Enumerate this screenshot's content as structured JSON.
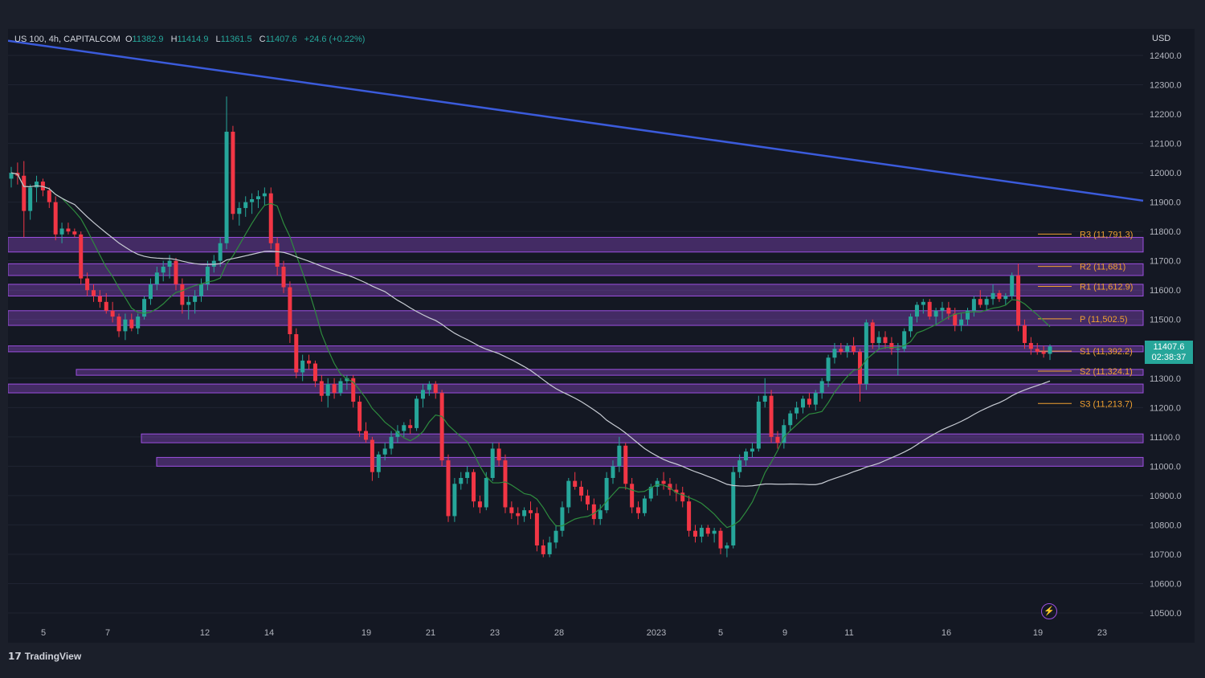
{
  "header": {
    "symbol": "US 100, 4h, CAPITALCOM",
    "open_label": "O",
    "open": "11382.9",
    "high_label": "H",
    "high": "11414.9",
    "low_label": "L",
    "low": "11361.5",
    "close_label": "C",
    "close": "11407.6",
    "change": "+24.6 (+0.22%)"
  },
  "currency": "USD",
  "last_price_tag": {
    "price": "11407.6",
    "countdown": "02:38:37"
  },
  "brand": "TradingView",
  "colors": {
    "up": "#26a69a",
    "down": "#f23645",
    "trendline": "#3b5bdb",
    "zone": "#9c4fe0",
    "pivot": "#f0a030",
    "ma_fast": "#2e8b3e",
    "ma_slow": "#c8ccd4"
  },
  "chart_data": {
    "type": "candlestick",
    "ylim": [
      10450,
      12500
    ],
    "y_ticks": [
      12400,
      12300,
      12200,
      12100,
      12000,
      11900,
      11800,
      11700,
      11600,
      11500,
      11400,
      11300,
      11200,
      11100,
      11000,
      10900,
      10800,
      10700,
      10600,
      10500
    ],
    "x_ticks": [
      "5",
      "7",
      "12",
      "14",
      "19",
      "21",
      "23",
      "28",
      "2023",
      "5",
      "9",
      "11",
      "16",
      "19",
      "23"
    ],
    "pivots": [
      {
        "label": "R3 (11,791.3)",
        "value": 11791.3
      },
      {
        "label": "R2 (11,681)",
        "value": 11681
      },
      {
        "label": "R1 (11,612.9)",
        "value": 11612.9
      },
      {
        "label": "P (11,502.5)",
        "value": 11502.5
      },
      {
        "label": "S1 (11,392.2)",
        "value": 11392.2
      },
      {
        "label": "S2 (11,324.1)",
        "value": 11324.1
      },
      {
        "label": "S3 (11,213.7)",
        "value": 11213.7
      }
    ],
    "zones": [
      [
        11730,
        11780
      ],
      [
        11650,
        11690
      ],
      [
        11580,
        11620
      ],
      [
        11480,
        11530
      ],
      [
        11390,
        11410
      ],
      [
        11310,
        11330
      ],
      [
        11250,
        11280
      ],
      [
        11080,
        11110
      ],
      [
        11000,
        11030
      ]
    ],
    "trendline": [
      12450,
      11905
    ],
    "ohlc": [
      [
        11980,
        12020,
        11950,
        12000
      ],
      [
        12000,
        12035,
        11960,
        11990
      ],
      [
        11990,
        12040,
        11780,
        11870
      ],
      [
        11870,
        11960,
        11840,
        11950
      ],
      [
        11950,
        11990,
        11900,
        11970
      ],
      [
        11970,
        11980,
        11920,
        11940
      ],
      [
        11940,
        11950,
        11880,
        11900
      ],
      [
        11900,
        11920,
        11770,
        11790
      ],
      [
        11790,
        11830,
        11760,
        11810
      ],
      [
        11810,
        11830,
        11790,
        11800
      ],
      [
        11800,
        11810,
        11780,
        11790
      ],
      [
        11790,
        11800,
        11620,
        11640
      ],
      [
        11640,
        11660,
        11580,
        11600
      ],
      [
        11600,
        11620,
        11560,
        11580
      ],
      [
        11580,
        11600,
        11540,
        11560
      ],
      [
        11560,
        11590,
        11520,
        11530
      ],
      [
        11530,
        11560,
        11490,
        11510
      ],
      [
        11510,
        11520,
        11440,
        11460
      ],
      [
        11460,
        11520,
        11430,
        11500
      ],
      [
        11500,
        11520,
        11460,
        11470
      ],
      [
        11470,
        11520,
        11450,
        11510
      ],
      [
        11510,
        11580,
        11500,
        11570
      ],
      [
        11570,
        11640,
        11550,
        11620
      ],
      [
        11620,
        11680,
        11600,
        11660
      ],
      [
        11660,
        11700,
        11630,
        11680
      ],
      [
        11680,
        11720,
        11640,
        11700
      ],
      [
        11700,
        11710,
        11600,
        11620
      ],
      [
        11620,
        11640,
        11520,
        11550
      ],
      [
        11550,
        11580,
        11500,
        11560
      ],
      [
        11560,
        11600,
        11520,
        11580
      ],
      [
        11580,
        11640,
        11560,
        11620
      ],
      [
        11620,
        11700,
        11600,
        11680
      ],
      [
        11680,
        11720,
        11660,
        11700
      ],
      [
        11700,
        11780,
        11680,
        11760
      ],
      [
        11760,
        12260,
        11740,
        12140
      ],
      [
        12140,
        12160,
        11840,
        11860
      ],
      [
        11860,
        11900,
        11820,
        11880
      ],
      [
        11880,
        11920,
        11850,
        11900
      ],
      [
        11900,
        11930,
        11860,
        11910
      ],
      [
        11910,
        11940,
        11880,
        11920
      ],
      [
        11920,
        11950,
        11890,
        11930
      ],
      [
        11930,
        11950,
        11740,
        11760
      ],
      [
        11760,
        11780,
        11650,
        11680
      ],
      [
        11680,
        11700,
        11590,
        11610
      ],
      [
        11610,
        11630,
        11420,
        11450
      ],
      [
        11450,
        11470,
        11300,
        11320
      ],
      [
        11320,
        11380,
        11290,
        11360
      ],
      [
        11360,
        11380,
        11330,
        11350
      ],
      [
        11350,
        11360,
        11270,
        11290
      ],
      [
        11290,
        11310,
        11220,
        11240
      ],
      [
        11240,
        11300,
        11200,
        11280
      ],
      [
        11280,
        11300,
        11230,
        11250
      ],
      [
        11250,
        11300,
        11240,
        11290
      ],
      [
        11290,
        11310,
        11260,
        11300
      ],
      [
        11300,
        11310,
        11200,
        11220
      ],
      [
        11220,
        11240,
        11100,
        11120
      ],
      [
        11120,
        11150,
        11080,
        11090
      ],
      [
        11090,
        11100,
        10950,
        10980
      ],
      [
        10980,
        11050,
        10960,
        11040
      ],
      [
        11040,
        11080,
        11020,
        11060
      ],
      [
        11060,
        11120,
        11040,
        11100
      ],
      [
        11100,
        11140,
        11080,
        11120
      ],
      [
        11120,
        11150,
        11100,
        11140
      ],
      [
        11140,
        11160,
        11110,
        11130
      ],
      [
        11130,
        11240,
        11120,
        11230
      ],
      [
        11230,
        11280,
        11200,
        11260
      ],
      [
        11260,
        11290,
        11240,
        11280
      ],
      [
        11280,
        11290,
        11230,
        11250
      ],
      [
        11250,
        11260,
        11000,
        11020
      ],
      [
        11020,
        11040,
        10810,
        10830
      ],
      [
        10830,
        10960,
        10810,
        10940
      ],
      [
        10940,
        10980,
        10920,
        10960
      ],
      [
        10960,
        11000,
        10940,
        10980
      ],
      [
        10980,
        10990,
        10860,
        10880
      ],
      [
        10880,
        10900,
        10840,
        10860
      ],
      [
        10860,
        10980,
        10850,
        10960
      ],
      [
        10960,
        11080,
        10950,
        11060
      ],
      [
        11060,
        11080,
        11000,
        11020
      ],
      [
        11020,
        11040,
        10840,
        10860
      ],
      [
        10860,
        10880,
        10820,
        10840
      ],
      [
        10840,
        10860,
        10800,
        10830
      ],
      [
        10830,
        10860,
        10810,
        10850
      ],
      [
        10850,
        10880,
        10820,
        10840
      ],
      [
        10840,
        10860,
        10710,
        10730
      ],
      [
        10730,
        10750,
        10690,
        10700
      ],
      [
        10700,
        10760,
        10690,
        10740
      ],
      [
        10740,
        10800,
        10720,
        10780
      ],
      [
        10780,
        10880,
        10760,
        10860
      ],
      [
        10860,
        10960,
        10840,
        10950
      ],
      [
        10950,
        10980,
        10920,
        10930
      ],
      [
        10930,
        10950,
        10880,
        10900
      ],
      [
        10900,
        10920,
        10850,
        10870
      ],
      [
        10870,
        10890,
        10800,
        10820
      ],
      [
        10820,
        10870,
        10800,
        10850
      ],
      [
        10850,
        10980,
        10840,
        10960
      ],
      [
        10960,
        11020,
        10940,
        11000
      ],
      [
        11000,
        11100,
        10980,
        11070
      ],
      [
        11070,
        11080,
        10920,
        10940
      ],
      [
        10940,
        10960,
        10840,
        10860
      ],
      [
        10860,
        10880,
        10820,
        10840
      ],
      [
        10840,
        10900,
        10830,
        10890
      ],
      [
        10890,
        10940,
        10880,
        10930
      ],
      [
        10930,
        10960,
        10900,
        10950
      ],
      [
        10950,
        10980,
        10920,
        10940
      ],
      [
        10940,
        10960,
        10900,
        10920
      ],
      [
        10920,
        10940,
        10880,
        10910
      ],
      [
        10910,
        10930,
        10860,
        10880
      ],
      [
        10880,
        10900,
        10760,
        10780
      ],
      [
        10780,
        10800,
        10740,
        10760
      ],
      [
        10760,
        10800,
        10740,
        10790
      ],
      [
        10790,
        10800,
        10760,
        10770
      ],
      [
        10770,
        10790,
        10740,
        10780
      ],
      [
        10780,
        10790,
        10700,
        10720
      ],
      [
        10720,
        10740,
        10690,
        10730
      ],
      [
        10730,
        11000,
        10720,
        10980
      ],
      [
        10980,
        11040,
        10960,
        11020
      ],
      [
        11020,
        11060,
        11000,
        11050
      ],
      [
        11050,
        11080,
        11030,
        11060
      ],
      [
        11060,
        11240,
        11050,
        11220
      ],
      [
        11220,
        11300,
        11200,
        11240
      ],
      [
        11240,
        11260,
        11080,
        11100
      ],
      [
        11100,
        11120,
        11060,
        11080
      ],
      [
        11080,
        11160,
        11060,
        11140
      ],
      [
        11140,
        11190,
        11120,
        11180
      ],
      [
        11180,
        11220,
        11160,
        11200
      ],
      [
        11200,
        11240,
        11180,
        11230
      ],
      [
        11230,
        11250,
        11200,
        11210
      ],
      [
        11210,
        11260,
        11190,
        11250
      ],
      [
        11250,
        11300,
        11230,
        11290
      ],
      [
        11290,
        11380,
        11270,
        11370
      ],
      [
        11370,
        11420,
        11350,
        11400
      ],
      [
        11400,
        11420,
        11380,
        11390
      ],
      [
        11390,
        11420,
        11370,
        11410
      ],
      [
        11410,
        11440,
        11380,
        11390
      ],
      [
        11390,
        11400,
        11220,
        11280
      ],
      [
        11280,
        11500,
        11260,
        11490
      ],
      [
        11490,
        11500,
        11400,
        11420
      ],
      [
        11420,
        11460,
        11400,
        11440
      ],
      [
        11440,
        11460,
        11400,
        11420
      ],
      [
        11420,
        11440,
        11380,
        11400
      ],
      [
        11400,
        11420,
        11310,
        11400
      ],
      [
        11400,
        11470,
        11390,
        11460
      ],
      [
        11460,
        11520,
        11440,
        11510
      ],
      [
        11510,
        11560,
        11490,
        11550
      ],
      [
        11550,
        11570,
        11520,
        11560
      ],
      [
        11560,
        11570,
        11500,
        11510
      ],
      [
        11510,
        11540,
        11480,
        11530
      ],
      [
        11530,
        11560,
        11500,
        11540
      ],
      [
        11540,
        11560,
        11500,
        11520
      ],
      [
        11520,
        11540,
        11460,
        11480
      ],
      [
        11480,
        11520,
        11460,
        11500
      ],
      [
        11500,
        11540,
        11480,
        11530
      ],
      [
        11530,
        11580,
        11510,
        11570
      ],
      [
        11570,
        11600,
        11540,
        11550
      ],
      [
        11550,
        11580,
        11530,
        11570
      ],
      [
        11570,
        11620,
        11550,
        11590
      ],
      [
        11590,
        11600,
        11560,
        11570
      ],
      [
        11570,
        11590,
        11550,
        11580
      ],
      [
        11580,
        11660,
        11570,
        11650
      ],
      [
        11650,
        11690,
        11460,
        11480
      ],
      [
        11480,
        11500,
        11400,
        11420
      ],
      [
        11420,
        11440,
        11380,
        11400
      ],
      [
        11400,
        11420,
        11380,
        11390
      ],
      [
        11390,
        11410,
        11370,
        11383
      ],
      [
        11383,
        11415,
        11362,
        11408
      ]
    ]
  }
}
